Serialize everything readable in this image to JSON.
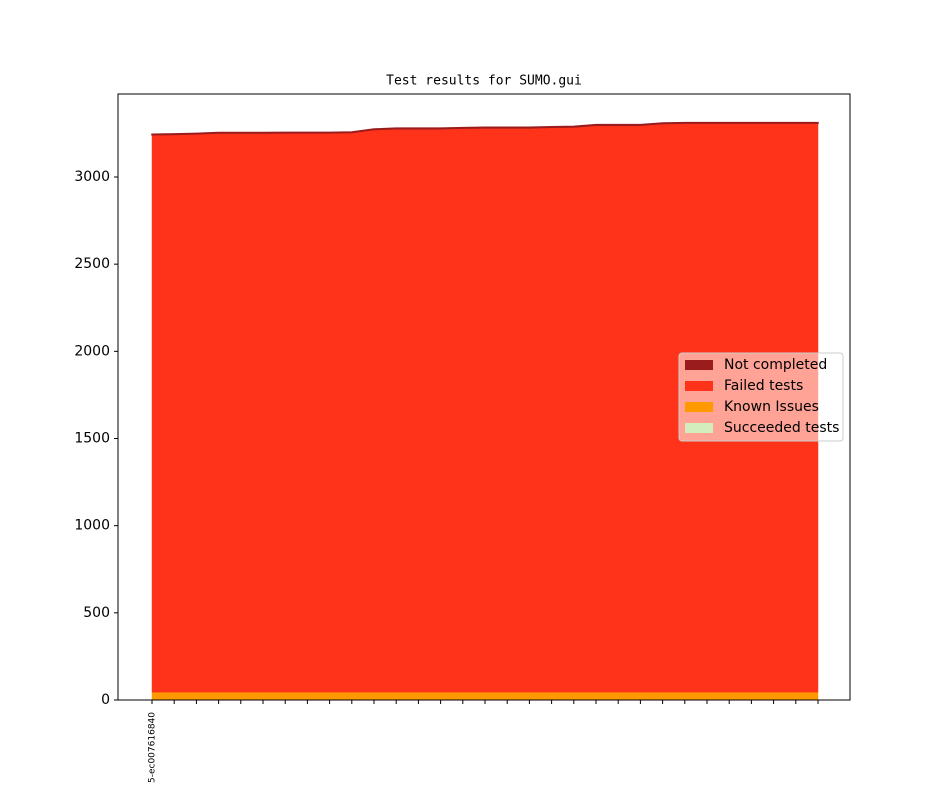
{
  "chart_data": {
    "type": "stacked_area",
    "title": "Test results for SUMO.gui",
    "categories": [
      "5-ec007616840",
      null,
      null,
      null,
      null,
      null,
      null,
      null,
      null,
      null,
      null,
      null,
      null,
      null,
      null,
      null,
      null,
      null,
      null,
      null,
      null,
      null,
      null,
      null,
      null,
      null,
      null,
      null,
      null,
      null,
      null
    ],
    "series": [
      {
        "name": "Not completed",
        "color": "#9b1c1c",
        "values": [
          3,
          3,
          3,
          3,
          3,
          3,
          3,
          3,
          3,
          3,
          3,
          3,
          3,
          3,
          3,
          3,
          3,
          3,
          3,
          3,
          3,
          3,
          3,
          3,
          3,
          3,
          3,
          3,
          3,
          3,
          3
        ]
      },
      {
        "name": "Failed tests",
        "color": "#ff331a",
        "values": [
          3197,
          3199,
          3202,
          3207,
          3207,
          3207,
          3208,
          3208,
          3208,
          3210,
          3227,
          3232,
          3232,
          3232,
          3235,
          3237,
          3237,
          3237,
          3240,
          3242,
          3252,
          3252,
          3252,
          3262,
          3264,
          3264,
          3264,
          3264,
          3264,
          3264,
          3264
        ]
      },
      {
        "name": "Known Issues",
        "color": "#ff9900",
        "values": [
          45,
          45,
          45,
          45,
          45,
          45,
          45,
          45,
          45,
          45,
          45,
          45,
          45,
          45,
          45,
          45,
          45,
          45,
          45,
          45,
          45,
          45,
          45,
          45,
          45,
          45,
          45,
          45,
          45,
          45,
          45
        ]
      },
      {
        "name": "Succeeded tests",
        "color": "#d4edbc",
        "values": [
          0,
          0,
          0,
          0,
          0,
          0,
          0,
          0,
          0,
          0,
          0,
          0,
          0,
          0,
          0,
          0,
          0,
          0,
          0,
          0,
          0,
          0,
          0,
          0,
          0,
          0,
          0,
          0,
          0,
          0,
          0
        ]
      }
    ],
    "ylim": [
      0,
      3476
    ],
    "yticks": [
      0,
      500,
      1000,
      1500,
      2000,
      2500,
      3000
    ],
    "legend": "center right"
  }
}
